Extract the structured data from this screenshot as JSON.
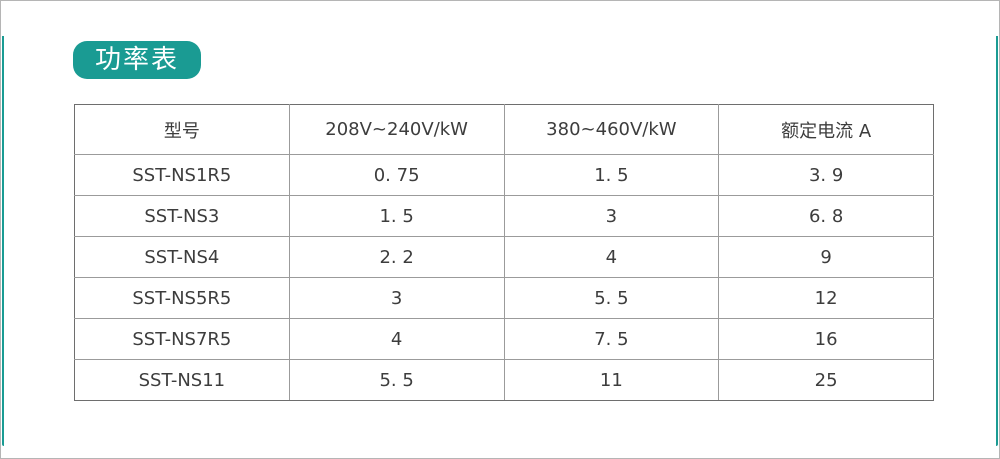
{
  "page": {
    "title_badge": "功率表"
  },
  "theme": {
    "accent_color": "#1a9b93",
    "badge_text_color": "#ffffff",
    "table_border_outer": "#6e6e6e",
    "table_border_inner": "#9b9b9b",
    "text_color": "#3d3d3d",
    "frame_border": "#b5b5b5"
  },
  "chart_data": {
    "type": "table",
    "title": "功率表",
    "headers": [
      "型号",
      "208V~240V/kW",
      "380~460V/kW",
      "额定电流 A"
    ],
    "rows": [
      [
        "SST-NS1R5",
        "0. 75",
        "1. 5",
        "3. 9"
      ],
      [
        "SST-NS3",
        "1. 5",
        "3",
        "6. 8"
      ],
      [
        "SST-NS4",
        "2. 2",
        "4",
        "9"
      ],
      [
        "SST-NS5R5",
        "3",
        "5. 5",
        "12"
      ],
      [
        "SST-NS7R5",
        "4",
        "7. 5",
        "16"
      ],
      [
        "SST-NS11",
        "5. 5",
        "11",
        "25"
      ]
    ]
  }
}
